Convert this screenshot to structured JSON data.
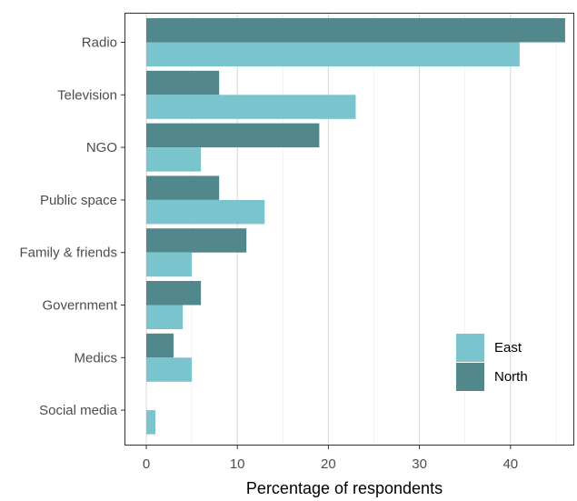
{
  "chart_data": {
    "type": "bar",
    "orientation": "horizontal",
    "categories": [
      "Radio",
      "Television",
      "NGO",
      "Public space",
      "Family & friends",
      "Government",
      "Medics",
      "Social media"
    ],
    "series": [
      {
        "name": "North",
        "color": "#52888b",
        "values": [
          46,
          8,
          19,
          8,
          11,
          6,
          3,
          0
        ]
      },
      {
        "name": "East",
        "color": "#7ac5cd",
        "values": [
          41,
          23,
          6,
          13,
          5,
          4,
          5,
          1
        ]
      }
    ],
    "legend_order": [
      "East",
      "North"
    ],
    "legend_position": "inside bottom-right",
    "xlabel": "Percentage of respondents",
    "ylabel": "",
    "xlim": [
      0,
      46
    ],
    "xticks": [
      0,
      10,
      20,
      30,
      40
    ],
    "grid": "vertical"
  }
}
